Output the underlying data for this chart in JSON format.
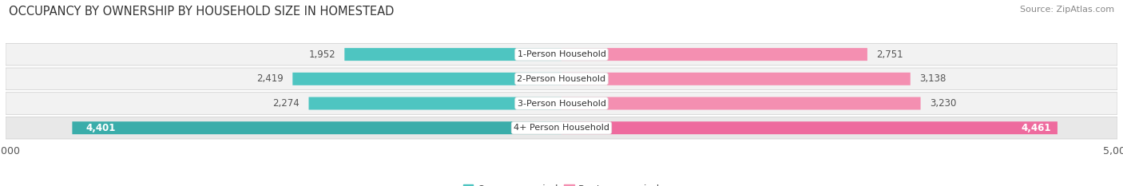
{
  "title": "OCCUPANCY BY OWNERSHIP BY HOUSEHOLD SIZE IN HOMESTEAD",
  "source": "Source: ZipAtlas.com",
  "categories": [
    "1-Person Household",
    "2-Person Household",
    "3-Person Household",
    "4+ Person Household"
  ],
  "owner_values": [
    1952,
    2419,
    2274,
    4401
  ],
  "renter_values": [
    2751,
    3138,
    3230,
    4461
  ],
  "owner_color": "#4EC5C1",
  "renter_color": "#F48FB1",
  "renter_color_4plus": "#EE6B9E",
  "owner_color_4plus": "#3AADAA",
  "row_bg_light": "#F2F2F2",
  "row_bg_dark": "#E8E8E8",
  "bar_height": 0.52,
  "xlim": 5000,
  "title_fontsize": 10.5,
  "source_fontsize": 8,
  "label_fontsize": 8.5,
  "tick_fontsize": 9,
  "legend_fontsize": 9,
  "background_color": "#FFFFFF",
  "value_color_outside": "#555555",
  "value_color_inside": "#FFFFFF"
}
